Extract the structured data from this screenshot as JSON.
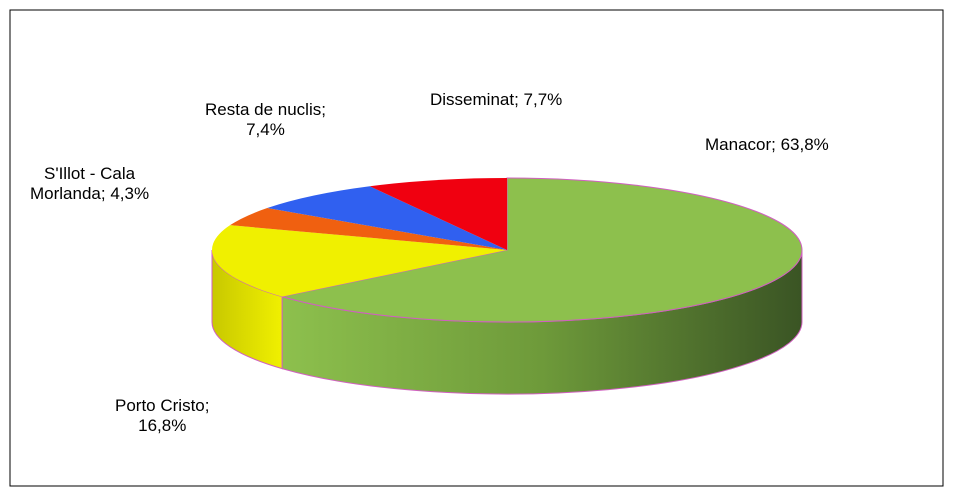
{
  "chart_data": {
    "type": "pie3d",
    "values": [
      63.8,
      16.8,
      4.3,
      7.4,
      7.7
    ],
    "value_labels": [
      "Manacor; 63,8%",
      "Porto Cristo;\n16,8%",
      "S'Illot - Cala\nMorlanda; 4,3%",
      "Resta de nuclis;\n7,4%",
      "Disseminat; 7,7%"
    ],
    "colors": [
      "#8dc04d",
      "#f0f000",
      "#f06010",
      "#3060f0",
      "#f00010"
    ]
  }
}
